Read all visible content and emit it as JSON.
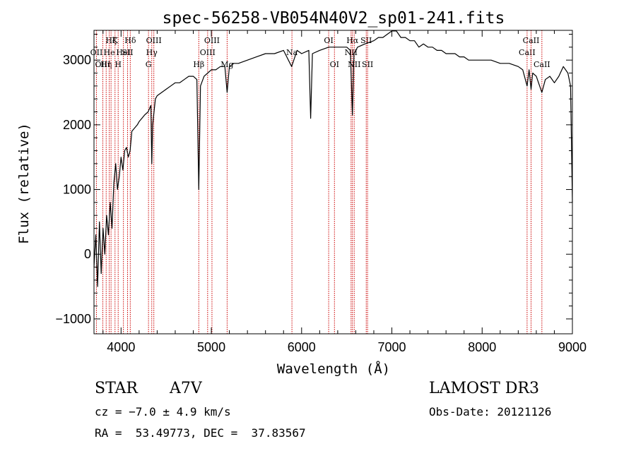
{
  "chart_data": {
    "type": "line",
    "title": "spec-56258-VB054N40V2_sp01-241.fits",
    "xlabel": "Wavelength (Å)",
    "ylabel": "Flux (relative)",
    "xlim": [
      3700,
      9000
    ],
    "ylim": [
      -1230,
      3460
    ],
    "x_ticks": [
      4000,
      5000,
      6000,
      7000,
      8000,
      9000
    ],
    "y_ticks": [
      -1000,
      0,
      1000,
      2000,
      3000
    ],
    "spectrum": {
      "x": [
        3700,
        3720,
        3740,
        3760,
        3780,
        3800,
        3820,
        3840,
        3860,
        3880,
        3900,
        3920,
        3940,
        3960,
        3980,
        4000,
        4020,
        4040,
        4060,
        4080,
        4100,
        4120,
        4150,
        4180,
        4200,
        4230,
        4260,
        4300,
        4330,
        4340,
        4350,
        4380,
        4400,
        4450,
        4500,
        4550,
        4600,
        4650,
        4700,
        4750,
        4800,
        4840,
        4861,
        4880,
        4920,
        4960,
        5000,
        5050,
        5100,
        5150,
        5175,
        5200,
        5250,
        5300,
        5400,
        5500,
        5600,
        5700,
        5800,
        5890,
        5950,
        6000,
        6080,
        6100,
        6120,
        6200,
        6300,
        6400,
        6450,
        6500,
        6540,
        6563,
        6580,
        6620,
        6700,
        6800,
        6850,
        6900,
        6950,
        7000,
        7050,
        7100,
        7150,
        7200,
        7250,
        7300,
        7350,
        7400,
        7450,
        7500,
        7550,
        7600,
        7650,
        7700,
        7750,
        7800,
        7850,
        7900,
        7950,
        8000,
        8100,
        8200,
        8300,
        8400,
        8450,
        8498,
        8520,
        8542,
        8560,
        8600,
        8662,
        8700,
        8750,
        8800,
        8850,
        8900,
        8950,
        8980,
        9000
      ],
      "y": [
        -200,
        300,
        -500,
        500,
        -300,
        400,
        0,
        600,
        300,
        800,
        400,
        1100,
        1400,
        1000,
        1200,
        1500,
        1300,
        1600,
        1650,
        1500,
        1600,
        1900,
        1950,
        2000,
        2050,
        2100,
        2150,
        2200,
        2300,
        1400,
        2000,
        2400,
        2450,
        2500,
        2550,
        2600,
        2650,
        2650,
        2700,
        2750,
        2750,
        2700,
        1000,
        2600,
        2750,
        2800,
        2850,
        2850,
        2900,
        2900,
        2500,
        2900,
        2950,
        2950,
        3000,
        3050,
        3100,
        3100,
        3150,
        2900,
        3150,
        3100,
        3150,
        2100,
        3100,
        3150,
        3200,
        3200,
        3200,
        3200,
        3150,
        2150,
        3100,
        3200,
        3250,
        3300,
        3350,
        3350,
        3400,
        3450,
        3450,
        3350,
        3350,
        3300,
        3300,
        3200,
        3250,
        3200,
        3200,
        3150,
        3150,
        3100,
        3100,
        3100,
        3050,
        3050,
        3000,
        3000,
        3000,
        3000,
        3000,
        2950,
        2950,
        2900,
        2850,
        2600,
        2850,
        2550,
        2800,
        2750,
        2500,
        2700,
        2750,
        2650,
        2750,
        2900,
        2800,
        2600,
        800
      ]
    },
    "line_markers": [
      {
        "wavelength": 3727,
        "label": "OII",
        "row": 2
      },
      {
        "wavelength": 3798,
        "label": "OIII",
        "row": 3
      },
      {
        "wavelength": 3835,
        "label": "Hη",
        "row": 3
      },
      {
        "wavelength": 3869,
        "label": "He",
        "row": 2
      },
      {
        "wavelength": 3889,
        "label": "Hζ",
        "row": 1
      },
      {
        "wavelength": 3933,
        "label": "K",
        "row": 1
      },
      {
        "wavelength": 3968,
        "label": "H",
        "row": 3
      },
      {
        "wavelength": 4026,
        "label": "HeI",
        "row": 2
      },
      {
        "wavelength": 4072,
        "label": "SII",
        "row": 2
      },
      {
        "wavelength": 4102,
        "label": "Hδ",
        "row": 1
      },
      {
        "wavelength": 4304,
        "label": "G",
        "row": 3
      },
      {
        "wavelength": 4340,
        "label": "Hγ",
        "row": 2
      },
      {
        "wavelength": 4363,
        "label": "OIII",
        "row": 1
      },
      {
        "wavelength": 4861,
        "label": "Hβ",
        "row": 3
      },
      {
        "wavelength": 4959,
        "label": "OIII",
        "row": 2
      },
      {
        "wavelength": 5007,
        "label": "OIII",
        "row": 1
      },
      {
        "wavelength": 5175,
        "label": "Mg",
        "row": 3
      },
      {
        "wavelength": 5893,
        "label": "Na",
        "row": 2
      },
      {
        "wavelength": 6300,
        "label": "OI",
        "row": 1
      },
      {
        "wavelength": 6364,
        "label": "OI",
        "row": 3
      },
      {
        "wavelength": 6548,
        "label": "NII",
        "row": 2
      },
      {
        "wavelength": 6563,
        "label": "Hα",
        "row": 1
      },
      {
        "wavelength": 6583,
        "label": "NII",
        "row": 3
      },
      {
        "wavelength": 6716,
        "label": "SII",
        "row": 1
      },
      {
        "wavelength": 6731,
        "label": "SII",
        "row": 3
      },
      {
        "wavelength": 8498,
        "label": "CaII",
        "row": 2
      },
      {
        "wavelength": 8542,
        "label": "CaII",
        "row": 1
      },
      {
        "wavelength": 8662,
        "label": "CaII",
        "row": 3
      }
    ]
  },
  "info": {
    "class": "STAR",
    "subclass": "A7V",
    "survey": "LAMOST DR3",
    "cz": "cz = −7.0 ± 4.9 km/s",
    "obs_date": "Obs-Date: 20121126",
    "coords": "RA =  53.49773, DEC =  37.83567"
  }
}
